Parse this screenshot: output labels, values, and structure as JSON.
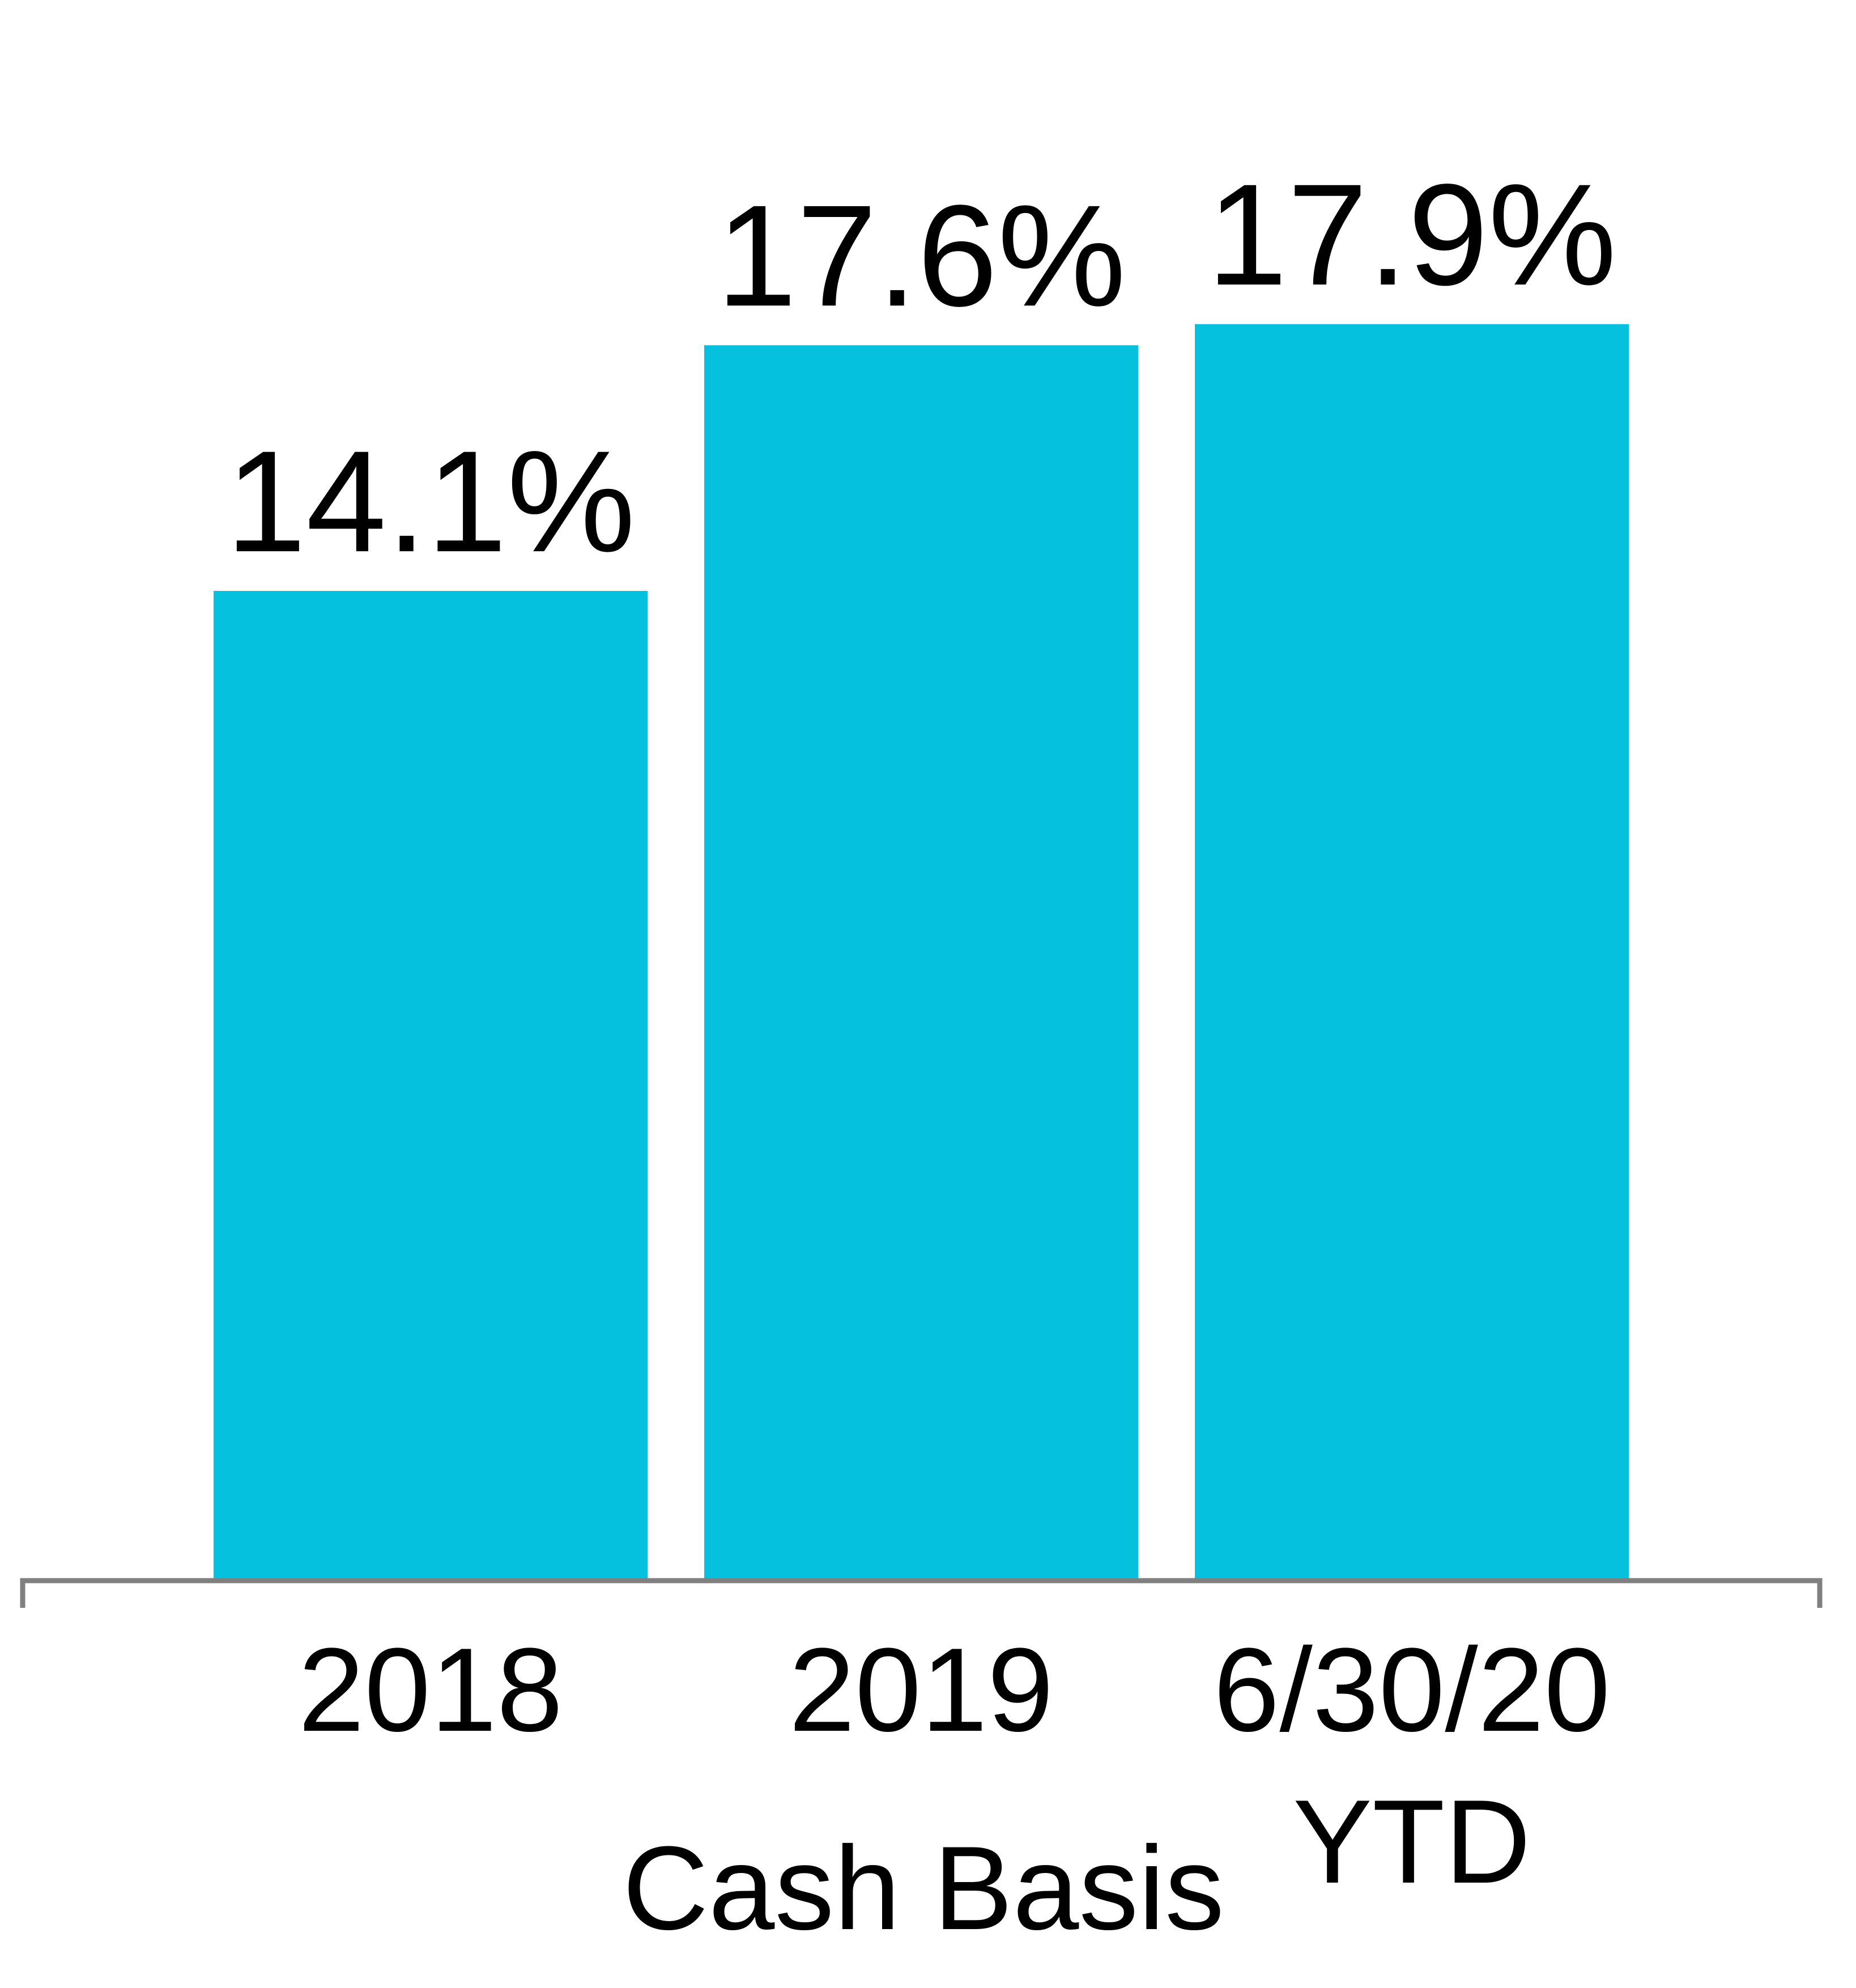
{
  "chart_data": {
    "type": "bar",
    "categories": [
      [
        "2018"
      ],
      [
        "2019"
      ],
      [
        "6/30/20",
        "YTD"
      ]
    ],
    "values": [
      14.1,
      17.6,
      17.9
    ],
    "data_labels": [
      "14.1%",
      "17.6%",
      "17.9%"
    ],
    "title": "",
    "xlabel": "Cash Basis",
    "ylabel": "",
    "ylim": [
      0,
      20
    ],
    "grid": false,
    "legend": "none",
    "colors": {
      "bar": "#06C1DE",
      "axis": "#808080",
      "text": "#000000"
    }
  }
}
